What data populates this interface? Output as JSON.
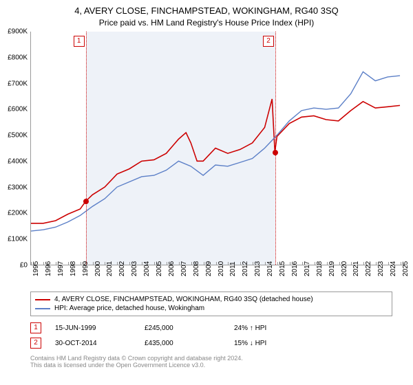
{
  "title": "4, AVERY CLOSE, FINCHAMPSTEAD, WOKINGHAM, RG40 3SQ",
  "subtitle": "Price paid vs. HM Land Registry's House Price Index (HPI)",
  "chart": {
    "type": "line",
    "background_color": "#ffffff",
    "shade_color": "#eef2f8",
    "grid_color": "#999999",
    "xlim": [
      1995,
      2025.5
    ],
    "ylim": [
      0,
      900
    ],
    "ytick_step": 100,
    "yticks": [
      "£0",
      "£100K",
      "£200K",
      "£300K",
      "£400K",
      "£500K",
      "£600K",
      "£700K",
      "£800K",
      "£900K"
    ],
    "xticks": [
      1995,
      1996,
      1997,
      1998,
      1999,
      2000,
      2001,
      2002,
      2003,
      2004,
      2005,
      2006,
      2007,
      2008,
      2009,
      2010,
      2011,
      2012,
      2013,
      2014,
      2015,
      2016,
      2017,
      2018,
      2019,
      2020,
      2021,
      2022,
      2023,
      2024,
      2025
    ],
    "label_fontsize": 10,
    "series": [
      {
        "name": "4, AVERY CLOSE, FINCHAMPSTEAD, WOKINGHAM, RG40 3SQ (detached house)",
        "color": "#cc0000",
        "line_width": 1.6,
        "points": [
          [
            1995,
            160
          ],
          [
            1996,
            160
          ],
          [
            1997,
            170
          ],
          [
            1998,
            195
          ],
          [
            1999,
            215
          ],
          [
            1999.45,
            245
          ],
          [
            2000,
            270
          ],
          [
            2001,
            300
          ],
          [
            2002,
            350
          ],
          [
            2003,
            370
          ],
          [
            2004,
            400
          ],
          [
            2005,
            405
          ],
          [
            2006,
            430
          ],
          [
            2007,
            485
          ],
          [
            2007.6,
            510
          ],
          [
            2008,
            470
          ],
          [
            2008.5,
            400
          ],
          [
            2009,
            400
          ],
          [
            2010,
            450
          ],
          [
            2011,
            430
          ],
          [
            2012,
            445
          ],
          [
            2013,
            470
          ],
          [
            2014,
            530
          ],
          [
            2014.6,
            640
          ],
          [
            2014.83,
            435
          ],
          [
            2015,
            495
          ],
          [
            2016,
            545
          ],
          [
            2017,
            570
          ],
          [
            2018,
            575
          ],
          [
            2019,
            560
          ],
          [
            2020,
            555
          ],
          [
            2021,
            595
          ],
          [
            2022,
            630
          ],
          [
            2023,
            605
          ],
          [
            2024,
            610
          ],
          [
            2025,
            615
          ]
        ]
      },
      {
        "name": "HPI: Average price, detached house, Wokingham",
        "color": "#5b7fc7",
        "line_width": 1.4,
        "points": [
          [
            1995,
            130
          ],
          [
            1996,
            135
          ],
          [
            1997,
            145
          ],
          [
            1998,
            165
          ],
          [
            1999,
            190
          ],
          [
            2000,
            225
          ],
          [
            2001,
            255
          ],
          [
            2002,
            300
          ],
          [
            2003,
            320
          ],
          [
            2004,
            340
          ],
          [
            2005,
            345
          ],
          [
            2006,
            365
          ],
          [
            2007,
            400
          ],
          [
            2008,
            380
          ],
          [
            2009,
            345
          ],
          [
            2010,
            385
          ],
          [
            2011,
            380
          ],
          [
            2012,
            395
          ],
          [
            2013,
            410
          ],
          [
            2014,
            450
          ],
          [
            2015,
            500
          ],
          [
            2016,
            555
          ],
          [
            2017,
            595
          ],
          [
            2018,
            605
          ],
          [
            2019,
            600
          ],
          [
            2020,
            605
          ],
          [
            2021,
            660
          ],
          [
            2022,
            745
          ],
          [
            2023,
            710
          ],
          [
            2024,
            725
          ],
          [
            2025,
            730
          ]
        ]
      }
    ],
    "event_lines": [
      {
        "x": 1999.45,
        "badge": "1",
        "dot_y": 245
      },
      {
        "x": 2014.83,
        "badge": "2",
        "dot_y": 435
      }
    ],
    "shade_range": [
      1999.45,
      2014.83
    ]
  },
  "legend": {
    "items": [
      {
        "color": "#cc0000",
        "label": "4, AVERY CLOSE, FINCHAMPSTEAD, WOKINGHAM, RG40 3SQ (detached house)"
      },
      {
        "color": "#5b7fc7",
        "label": "HPI: Average price, detached house, Wokingham"
      }
    ]
  },
  "transactions": [
    {
      "badge": "1",
      "date": "15-JUN-1999",
      "price": "£245,000",
      "diff": "24% ↑ HPI"
    },
    {
      "badge": "2",
      "date": "30-OCT-2014",
      "price": "£435,000",
      "diff": "15% ↓ HPI"
    }
  ],
  "footer": {
    "line1": "Contains HM Land Registry data © Crown copyright and database right 2024.",
    "line2": "This data is licensed under the Open Government Licence v3.0."
  }
}
